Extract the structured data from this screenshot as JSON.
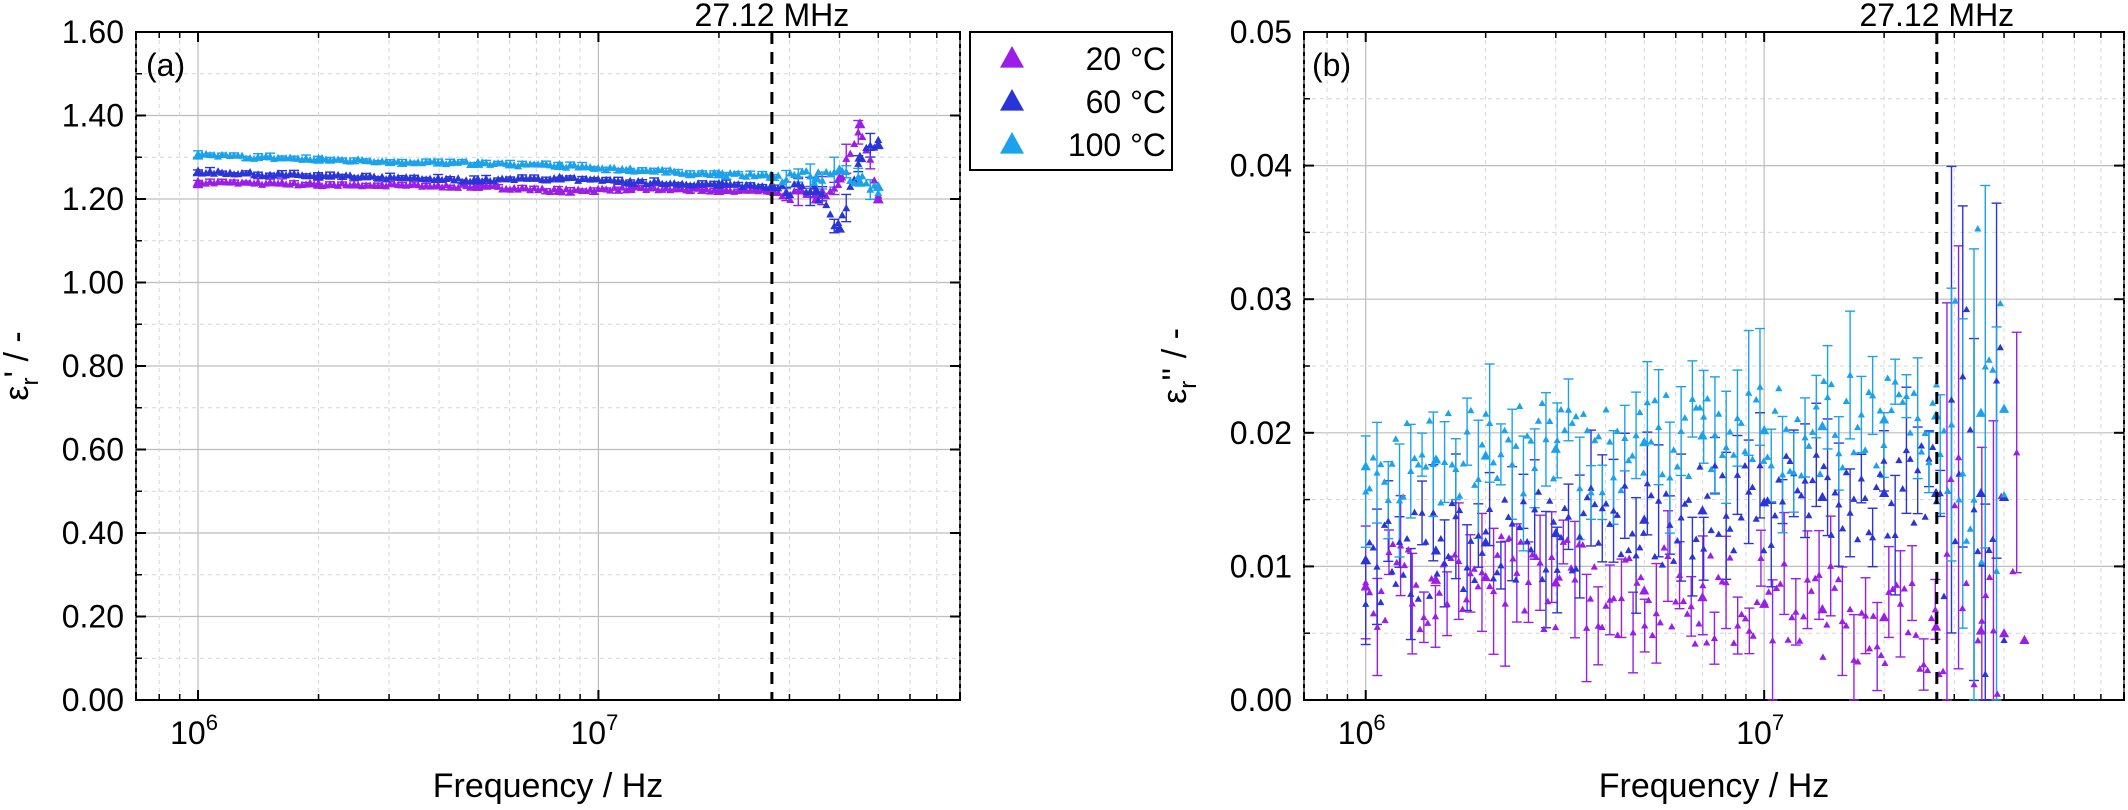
{
  "chart_data": [
    {
      "panel_label": "(a)",
      "type": "scatter",
      "xlabel": "Frequency / Hz",
      "ylabel_main": "ε",
      "ylabel_sub": "r",
      "ylabel_tail": "' / -",
      "x_scale": "log",
      "xlim": [
        700000,
        80000000
      ],
      "x_ticks": [
        {
          "value": 1000000,
          "base": "10",
          "exp": "6"
        },
        {
          "value": 10000000,
          "base": "10",
          "exp": "7"
        }
      ],
      "ylim": [
        0,
        1.6
      ],
      "y_ticks": [
        "0.00",
        "0.20",
        "0.40",
        "0.60",
        "0.80",
        "1.00",
        "1.20",
        "1.40",
        "1.60"
      ],
      "grid": true,
      "annotation": {
        "x": 27120000,
        "label": "27.12 MHz"
      },
      "series": [
        {
          "name": "20 °C",
          "color": "#9b1ee8",
          "style": "filled-triangle-with-error-bars",
          "x": [
            1000000,
            2000000,
            5000000,
            8000000,
            12000000,
            20000000,
            27000000,
            35000000,
            40000000,
            45000000,
            50000000
          ],
          "y": [
            1.24,
            1.235,
            1.23,
            1.22,
            1.225,
            1.22,
            1.22,
            1.2,
            1.25,
            1.38,
            1.2
          ]
        },
        {
          "name": "60 °C",
          "color": "#2a35d8",
          "style": "filled-triangle-with-error-bars",
          "x": [
            1000000,
            2000000,
            5000000,
            8000000,
            12000000,
            20000000,
            27000000,
            35000000,
            40000000,
            45000000,
            50000000
          ],
          "y": [
            1.265,
            1.255,
            1.245,
            1.25,
            1.24,
            1.235,
            1.23,
            1.22,
            1.13,
            1.3,
            1.33
          ]
        },
        {
          "name": "100 °C",
          "color": "#1aa3ec",
          "style": "filled-triangle-with-error-bars",
          "x": [
            1000000,
            2000000,
            5000000,
            8000000,
            12000000,
            20000000,
            27000000,
            35000000,
            40000000,
            45000000,
            50000000
          ],
          "y": [
            1.305,
            1.295,
            1.285,
            1.28,
            1.27,
            1.26,
            1.255,
            1.25,
            1.27,
            1.24,
            1.23
          ]
        }
      ]
    },
    {
      "panel_label": "(b)",
      "type": "scatter",
      "xlabel": "Frequency / Hz",
      "ylabel_main": "ε",
      "ylabel_sub": "r",
      "ylabel_tail": "'' / -",
      "x_scale": "log",
      "xlim": [
        700000,
        80000000
      ],
      "x_ticks": [
        {
          "value": 1000000,
          "base": "10",
          "exp": "6"
        },
        {
          "value": 10000000,
          "base": "10",
          "exp": "7"
        }
      ],
      "ylim": [
        0,
        0.05
      ],
      "y_ticks": [
        "0.00",
        "0.01",
        "0.02",
        "0.03",
        "0.04",
        "0.05"
      ],
      "grid": true,
      "annotation": {
        "x": 27120000,
        "label": "27.12 MHz"
      },
      "series": [
        {
          "name": "20 °C",
          "color": "#9b1ee8",
          "style": "filled-triangle-with-error-bars",
          "x": [
            1000000,
            1500000,
            2000000,
            3000000,
            5000000,
            7000000,
            10000000,
            14000000,
            20000000,
            27000000,
            35000000,
            40000000,
            45000000
          ],
          "y": [
            0.0085,
            0.009,
            0.0092,
            0.0088,
            0.0082,
            0.0077,
            0.0072,
            0.0068,
            0.0062,
            0.0055,
            0.0052,
            0.005,
            0.0045
          ]
        },
        {
          "name": "60 °C",
          "color": "#2a35d8",
          "style": "filled-triangle-with-error-bars",
          "x": [
            1000000,
            1500000,
            2000000,
            3000000,
            5000000,
            7000000,
            10000000,
            14000000,
            20000000,
            27000000,
            35000000,
            40000000
          ],
          "y": [
            0.0105,
            0.0112,
            0.0118,
            0.0125,
            0.0135,
            0.0142,
            0.0148,
            0.0152,
            0.0155,
            0.0155,
            0.0155,
            0.0152
          ]
        },
        {
          "name": "100 °C",
          "color": "#1aa3ec",
          "style": "filled-triangle-with-error-bars",
          "x": [
            1000000,
            1500000,
            2000000,
            3000000,
            5000000,
            7000000,
            10000000,
            14000000,
            20000000,
            27000000,
            35000000,
            40000000
          ],
          "y": [
            0.0175,
            0.018,
            0.0183,
            0.0188,
            0.0193,
            0.0198,
            0.0202,
            0.0205,
            0.021,
            0.0213,
            0.0215,
            0.0218
          ]
        }
      ]
    }
  ],
  "legend": {
    "placement": "top-right of panel (a)",
    "entries": [
      {
        "label": "20 °C",
        "color": "#9b1ee8"
      },
      {
        "label": "60 °C",
        "color": "#2a35d8"
      },
      {
        "label": "100 °C",
        "color": "#1aa3ec"
      }
    ]
  }
}
